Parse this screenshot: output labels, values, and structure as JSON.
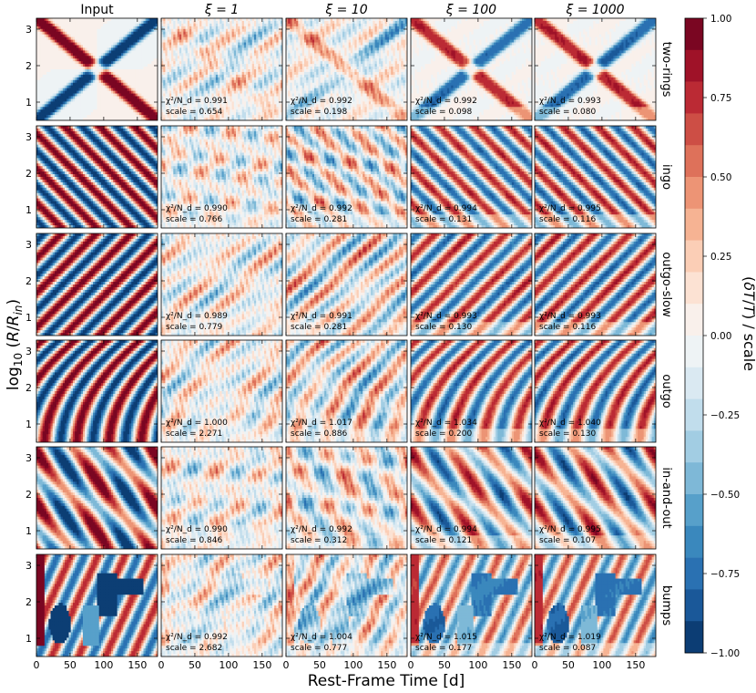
{
  "chart_data": {
    "type": "heatmap",
    "column_headers": [
      "Input",
      "ξ = 1",
      "ξ = 10",
      "ξ = 100",
      "ξ = 1000"
    ],
    "row_labels": [
      "two-rings",
      "ingo",
      "outgo-slow",
      "outgo",
      "in-and-out",
      "bumps"
    ],
    "xlabel": "Rest-Frame Time [d]",
    "ylabel": "log10(R/R_in)",
    "xlim": [
      0,
      180
    ],
    "ylim": [
      0.5,
      3.3
    ],
    "x_ticks": [
      0,
      50,
      100,
      150
    ],
    "y_ticks": [
      1,
      2,
      3
    ],
    "colorbar": {
      "label": "(δT/T) / scale",
      "range": [
        -1.0,
        1.0
      ],
      "ticks": [
        1.0,
        0.75,
        0.5,
        0.25,
        0.0,
        -0.25,
        -0.5,
        -0.75,
        -1.0
      ],
      "tick_labels": [
        "1.00",
        "0.75",
        "0.50",
        "0.25",
        "0.00",
        "−0.25",
        "−0.50",
        "−0.75",
        "−1.00"
      ],
      "levels": 20,
      "cmap": "RdBu_r"
    },
    "chi2_label": "χ²/N_d =",
    "scale_label": "scale =",
    "fits": [
      {
        "row": "two-rings",
        "chi2": [
          "0.991",
          "0.992",
          "0.992",
          "0.993"
        ],
        "scale": [
          "0.654",
          "0.198",
          "0.098",
          "0.080"
        ]
      },
      {
        "row": "ingo",
        "chi2": [
          "0.990",
          "0.992",
          "0.994",
          "0.995"
        ],
        "scale": [
          "0.766",
          "0.281",
          "0.131",
          "0.116"
        ]
      },
      {
        "row": "outgo-slow",
        "chi2": [
          "0.989",
          "0.991",
          "0.993",
          "0.993"
        ],
        "scale": [
          "0.779",
          "0.281",
          "0.130",
          "0.116"
        ]
      },
      {
        "row": "outgo",
        "chi2": [
          "1.000",
          "1.017",
          "1.034",
          "1.040"
        ],
        "scale": [
          "2.271",
          "0.886",
          "0.200",
          "0.130"
        ]
      },
      {
        "row": "in-and-out",
        "chi2": [
          "0.990",
          "0.992",
          "0.994",
          "0.995"
        ],
        "scale": [
          "0.846",
          "0.312",
          "0.121",
          "0.107"
        ]
      },
      {
        "row": "bumps",
        "chi2": [
          "0.992",
          "1.004",
          "1.015",
          "1.019"
        ],
        "scale": [
          "2.682",
          "0.777",
          "0.177",
          "0.087"
        ]
      }
    ]
  }
}
